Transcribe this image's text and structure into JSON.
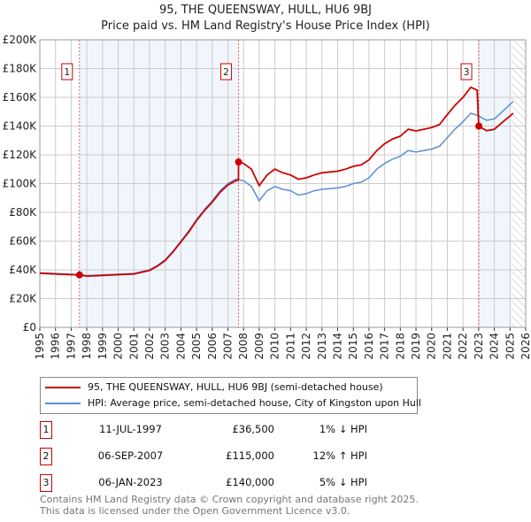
{
  "title": "95, THE QUEENSWAY, HULL, HU6 9BJ",
  "subtitle": "Price paid vs. HM Land Registry's House Price Index (HPI)",
  "chart_data": {
    "type": "line",
    "title": "95, THE QUEENSWAY, HULL, HU6 9BJ — Price paid vs. HM Land Registry's House Price Index (HPI)",
    "xlim": [
      1995,
      2026
    ],
    "ylim": [
      0,
      200000
    ],
    "x_ticks": [
      1995,
      1996,
      1997,
      1998,
      1999,
      2000,
      2001,
      2002,
      2003,
      2004,
      2005,
      2006,
      2007,
      2008,
      2009,
      2010,
      2011,
      2012,
      2013,
      2014,
      2015,
      2016,
      2017,
      2018,
      2019,
      2020,
      2021,
      2022,
      2023,
      2024,
      2025,
      2026
    ],
    "y_ticks": [
      0,
      20000,
      40000,
      60000,
      80000,
      100000,
      120000,
      140000,
      160000,
      180000,
      200000
    ],
    "y_tick_labels": [
      "£0",
      "£20K",
      "£40K",
      "£60K",
      "£80K",
      "£100K",
      "£120K",
      "£140K",
      "£160K",
      "£180K",
      "£200K"
    ],
    "grid": true,
    "forecast_start": 2025.1,
    "series": [
      {
        "name": "95, THE QUEENSWAY, HULL, HU6 9BJ (semi-detached house)",
        "color": "#cc0000",
        "x": [
          1995,
          1996,
          1997,
          1997.53,
          1998,
          1999,
          2000,
          2001,
          2002,
          2002.5,
          2003,
          2003.5,
          2004,
          2004.5,
          2005,
          2005.5,
          2006,
          2006.5,
          2007,
          2007.5,
          2007.67,
          2007.68,
          2008,
          2008.5,
          2009,
          2009.5,
          2010,
          2010.5,
          2011,
          2011.5,
          2012,
          2012.5,
          2013,
          2014,
          2014.5,
          2015,
          2015.5,
          2016,
          2016.5,
          2017,
          2017.5,
          2018,
          2018.5,
          2019,
          2019.5,
          2020,
          2020.5,
          2021,
          2021.5,
          2022,
          2022.5,
          2022.9,
          2023.01,
          2023.5,
          2024,
          2024.5,
          2025,
          2025.2
        ],
        "y": [
          37600,
          37100,
          36600,
          36500,
          35600,
          36100,
          36600,
          37100,
          39600,
          42600,
          46500,
          52500,
          59400,
          66300,
          74300,
          81200,
          87100,
          94000,
          99000,
          102000,
          102500,
          115000,
          114000,
          110000,
          98600,
          106000,
          110000,
          107500,
          106000,
          103000,
          104000,
          106000,
          107500,
          108600,
          110000,
          112000,
          113000,
          116500,
          123000,
          127700,
          131000,
          133000,
          137800,
          136600,
          137800,
          139000,
          141000,
          148000,
          154600,
          160000,
          167000,
          165000,
          140000,
          136800,
          137800,
          142500,
          147000,
          149000
        ]
      },
      {
        "name": "HPI: Average price, semi-detached house, City of Kingston upon Hull",
        "color": "#5b8fd6",
        "x": [
          1995,
          1996,
          1997,
          1997.5,
          1998,
          1999,
          2000,
          2001,
          2002,
          2002.5,
          2003,
          2003.5,
          2004,
          2004.5,
          2005,
          2005.5,
          2006,
          2006.5,
          2007,
          2007.5,
          2008,
          2008.5,
          2009,
          2009.5,
          2010,
          2010.5,
          2011,
          2011.5,
          2012,
          2012.5,
          2013,
          2014,
          2014.5,
          2015,
          2015.5,
          2016,
          2016.5,
          2017,
          2017.5,
          2018,
          2018.5,
          2019,
          2019.5,
          2020,
          2020.5,
          2021,
          2021.5,
          2022,
          2022.5,
          2023,
          2023.5,
          2024,
          2024.5,
          2025,
          2025.2
        ],
        "y": [
          38000,
          37500,
          37000,
          36800,
          36000,
          36500,
          37000,
          37500,
          40000,
          43000,
          47000,
          53000,
          60000,
          67000,
          75000,
          82000,
          88000,
          95000,
          100000,
          103000,
          102000,
          98000,
          88000,
          95000,
          98000,
          96000,
          95000,
          92000,
          93000,
          95000,
          96000,
          97000,
          98000,
          100000,
          101000,
          104000,
          110000,
          114000,
          117000,
          119000,
          123000,
          122000,
          123000,
          124000,
          126000,
          132000,
          138000,
          143000,
          149000,
          147000,
          144000,
          145000,
          150000,
          155000,
          157000
        ]
      }
    ],
    "sales": [
      {
        "label": "1",
        "x": 1997.53,
        "y": 36500,
        "date": "11-JUL-1997",
        "price": "£36,500",
        "hpi": "1% ↓ HPI"
      },
      {
        "label": "2",
        "x": 2007.68,
        "y": 115000,
        "date": "06-SEP-2007",
        "price": "£115,000",
        "hpi": "12% ↑ HPI"
      },
      {
        "label": "3",
        "x": 2023.01,
        "y": 140000,
        "date": "06-JAN-2023",
        "price": "£140,000",
        "hpi": "5% ↓ HPI"
      }
    ]
  },
  "legend": {
    "property": "95, THE QUEENSWAY, HULL, HU6 9BJ (semi-detached house)",
    "hpi": "HPI: Average price, semi-detached house, City of Kingston upon Hull"
  },
  "footer": {
    "line1": "Contains HM Land Registry data © Crown copyright and database right 2025.",
    "line2": "This data is licensed under the Open Government Licence v3.0."
  }
}
